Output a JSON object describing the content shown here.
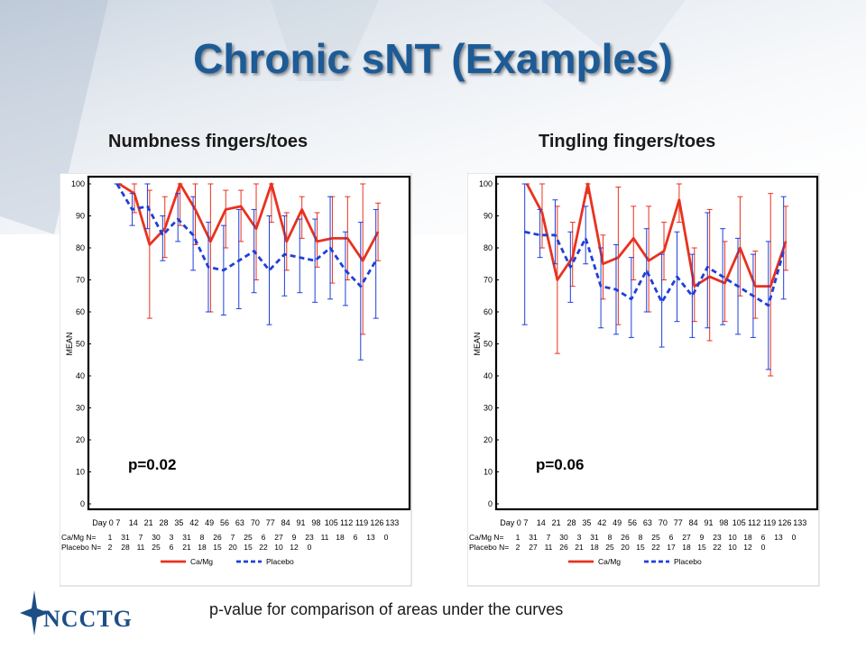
{
  "slide_title": "Chronic sNT (Examples)",
  "footer_note": "p-value for comparison of areas under the curves",
  "logo_text": "NCCTG",
  "colors": {
    "title": "#1c5b96",
    "cam g": "#e8321f",
    "placebo": "#1f3fd8"
  },
  "chart_data": [
    {
      "type": "line",
      "title": "Numbness fingers/toes",
      "ylabel": "MEAN",
      "ylim": [
        0,
        100
      ],
      "yticks": [
        "0",
        "10",
        "20",
        "30",
        "40",
        "50",
        "60",
        "70",
        "80",
        "90",
        "100"
      ],
      "x_tick_labels": [
        "Day 0",
        "7",
        "14",
        "21",
        "28",
        "35",
        "42",
        "49",
        "56",
        "63",
        "70",
        "77",
        "84",
        "91",
        "98",
        "105",
        "112",
        "119",
        "126",
        "133"
      ],
      "x": [
        7,
        14,
        21,
        28,
        35,
        42,
        49,
        56,
        63,
        70,
        77,
        84,
        91,
        98,
        105,
        112,
        119,
        126
      ],
      "series": [
        {
          "name": "Ca/Mg",
          "style": "solid",
          "values": [
            100,
            97,
            81,
            86,
            100,
            92,
            82,
            92,
            93,
            86,
            100,
            82,
            92,
            82,
            83,
            83,
            76,
            85
          ],
          "err_low": [
            100,
            91,
            58,
            77,
            87,
            81,
            60,
            80,
            82,
            70,
            88,
            73,
            83,
            74,
            69,
            70,
            53,
            76
          ],
          "err_high": [
            100,
            100,
            98,
            96,
            100,
            100,
            100,
            98,
            98,
            100,
            100,
            91,
            96,
            91,
            96,
            96,
            100,
            94
          ]
        },
        {
          "name": "Placebo",
          "style": "dashed",
          "values": [
            100,
            92,
            93,
            84,
            89,
            84,
            74,
            73,
            76,
            79,
            73,
            78,
            77,
            76,
            80,
            73,
            68,
            76
          ],
          "err_low": [
            100,
            87,
            86,
            76,
            82,
            73,
            60,
            59,
            61,
            66,
            56,
            65,
            66,
            63,
            64,
            62,
            45,
            58
          ],
          "err_high": [
            100,
            97,
            100,
            90,
            97,
            96,
            88,
            87,
            92,
            92,
            90,
            90,
            89,
            89,
            96,
            85,
            88,
            92
          ]
        }
      ],
      "annotation": "p=0.02",
      "n_table": {
        "label_1": "Ca/Mg N=",
        "row_1": [
          "1",
          "31",
          "7",
          "30",
          "3",
          "31",
          "8",
          "26",
          "7",
          "25",
          "6",
          "27",
          "9",
          "23",
          "11",
          "18",
          "6",
          "13",
          "0"
        ],
        "label_2": "Placebo N=",
        "row_2": [
          "2",
          "28",
          "11",
          "25",
          "6",
          "21",
          "18",
          "15",
          "20",
          "15",
          "22",
          "10",
          "12",
          "0"
        ]
      },
      "legend": [
        "Ca/Mg",
        "Placebo"
      ],
      "legend_position": "bottom"
    },
    {
      "type": "line",
      "title": "Tingling fingers/toes",
      "ylabel": "MEAN",
      "ylim": [
        0,
        100
      ],
      "yticks": [
        "0",
        "10",
        "20",
        "30",
        "40",
        "50",
        "60",
        "70",
        "80",
        "90",
        "100"
      ],
      "x_tick_labels": [
        "Day 0",
        "7",
        "14",
        "21",
        "28",
        "35",
        "42",
        "49",
        "56",
        "63",
        "70",
        "77",
        "84",
        "91",
        "98",
        "105",
        "112",
        "119",
        "126",
        "133"
      ],
      "x": [
        7,
        14,
        21,
        28,
        35,
        42,
        49,
        56,
        63,
        70,
        77,
        84,
        91,
        98,
        105,
        112,
        119,
        126
      ],
      "series": [
        {
          "name": "Ca/Mg",
          "style": "solid",
          "values": [
            100,
            91,
            70,
            77,
            100,
            75,
            77,
            83,
            76,
            79,
            95,
            68,
            71,
            69,
            80,
            68,
            68,
            82
          ],
          "err_low": [
            100,
            80,
            47,
            68,
            97,
            64,
            56,
            70,
            60,
            70,
            88,
            57,
            51,
            57,
            65,
            58,
            40,
            73
          ],
          "err_high": [
            100,
            100,
            93,
            88,
            100,
            84,
            99,
            93,
            93,
            88,
            100,
            80,
            92,
            82,
            96,
            79,
            97,
            93
          ]
        },
        {
          "name": "Placebo",
          "style": "dashed",
          "values": [
            85,
            84,
            84,
            74,
            83,
            68,
            67,
            64,
            73,
            63,
            71,
            65,
            74,
            71,
            68,
            65,
            62,
            79
          ],
          "err_low": [
            56,
            77,
            75,
            63,
            75,
            55,
            53,
            52,
            60,
            49,
            57,
            52,
            55,
            56,
            53,
            52,
            42,
            64
          ],
          "err_high": [
            100,
            92,
            95,
            85,
            93,
            80,
            81,
            77,
            86,
            78,
            85,
            78,
            91,
            86,
            83,
            78,
            82,
            96
          ]
        }
      ],
      "annotation": "p=0.06",
      "n_table": {
        "label_1": "Ca/Mg N=",
        "row_1": [
          "1",
          "31",
          "7",
          "30",
          "3",
          "31",
          "8",
          "26",
          "8",
          "25",
          "6",
          "27",
          "9",
          "23",
          "10",
          "18",
          "6",
          "13",
          "0"
        ],
        "label_2": "Placebo N=",
        "row_2": [
          "2",
          "27",
          "11",
          "26",
          "21",
          "18",
          "25",
          "20",
          "15",
          "22",
          "17",
          "18",
          "15",
          "22",
          "10",
          "12",
          "0"
        ]
      },
      "legend": [
        "Ca/Mg",
        "Placebo"
      ],
      "legend_position": "bottom"
    }
  ]
}
